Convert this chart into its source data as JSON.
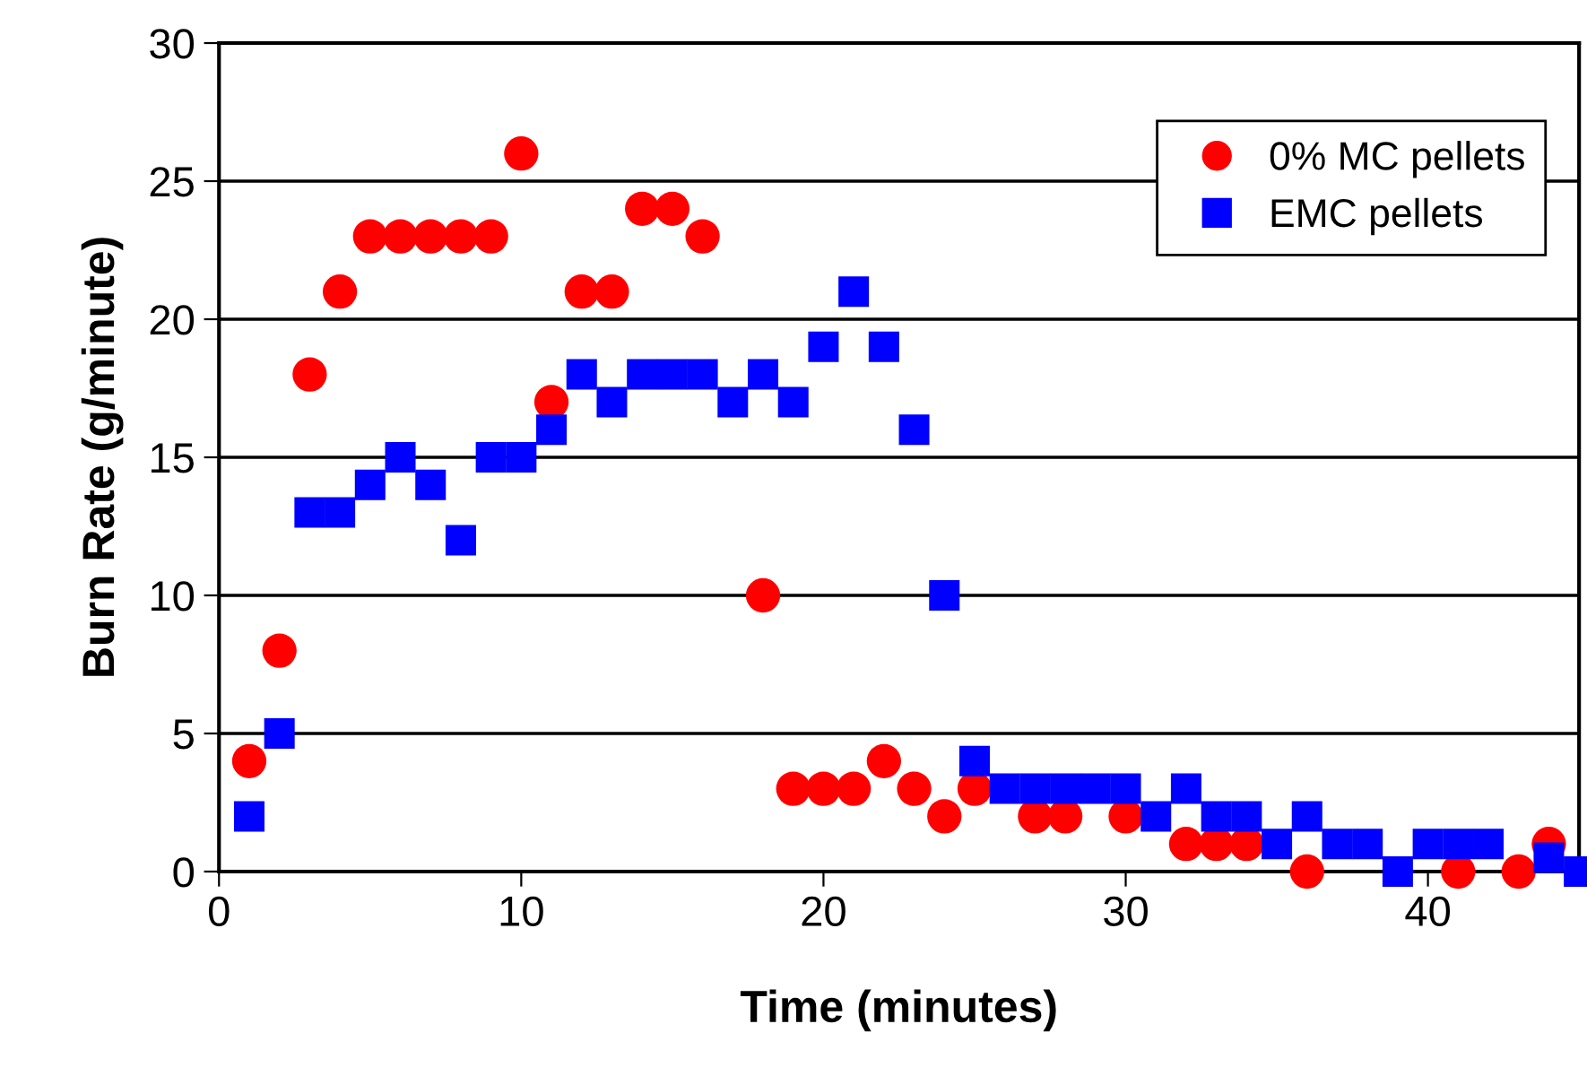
{
  "chart_data": {
    "type": "scatter",
    "xlabel": "Time (minutes)",
    "ylabel": "Burn Rate (g/minute)",
    "xlim": [
      0,
      45
    ],
    "xticks": [
      0,
      10,
      20,
      30,
      40
    ],
    "ylim": [
      0,
      30
    ],
    "yticks": [
      0,
      5,
      10,
      15,
      20,
      25,
      30
    ],
    "grid": "y",
    "legend": "top right",
    "series": [
      {
        "name": "0% MC pellets",
        "color": "#ff0000",
        "marker": "circle",
        "x": [
          1,
          2,
          3,
          4,
          5,
          6,
          7,
          8,
          9,
          10,
          11,
          12,
          13,
          14,
          15,
          16,
          18,
          19,
          20,
          21,
          22,
          23,
          24,
          25,
          27,
          28,
          30,
          32,
          33,
          34,
          36,
          41,
          43,
          44
        ],
        "values": [
          4,
          8,
          18,
          21,
          23,
          23,
          23,
          23,
          23,
          26,
          17,
          21,
          21,
          24,
          24,
          23,
          10,
          3,
          3,
          3,
          4,
          3,
          2,
          3,
          2,
          2,
          2,
          1,
          1,
          1,
          0,
          0,
          0,
          1
        ]
      },
      {
        "name": "EMC pellets",
        "color": "#0000ff",
        "marker": "square",
        "x": [
          1,
          2,
          3,
          4,
          5,
          6,
          7,
          8,
          9,
          10,
          11,
          12,
          13,
          14,
          15,
          16,
          17,
          18,
          19,
          20,
          21,
          22,
          23,
          24,
          25,
          26,
          27,
          28,
          29,
          30,
          31,
          32,
          33,
          34,
          35,
          36,
          37,
          38,
          39,
          40,
          41,
          42,
          44,
          45
        ],
        "values": [
          2,
          5,
          13,
          13,
          14,
          15,
          14,
          12,
          15,
          15,
          16,
          18,
          17,
          18,
          18,
          18,
          17,
          18,
          17,
          19,
          21,
          19,
          16,
          10,
          4,
          3,
          3,
          3,
          3,
          3,
          2,
          3,
          2,
          2,
          1,
          2,
          1,
          1,
          0,
          1,
          1,
          1,
          0.5,
          0
        ]
      }
    ]
  }
}
